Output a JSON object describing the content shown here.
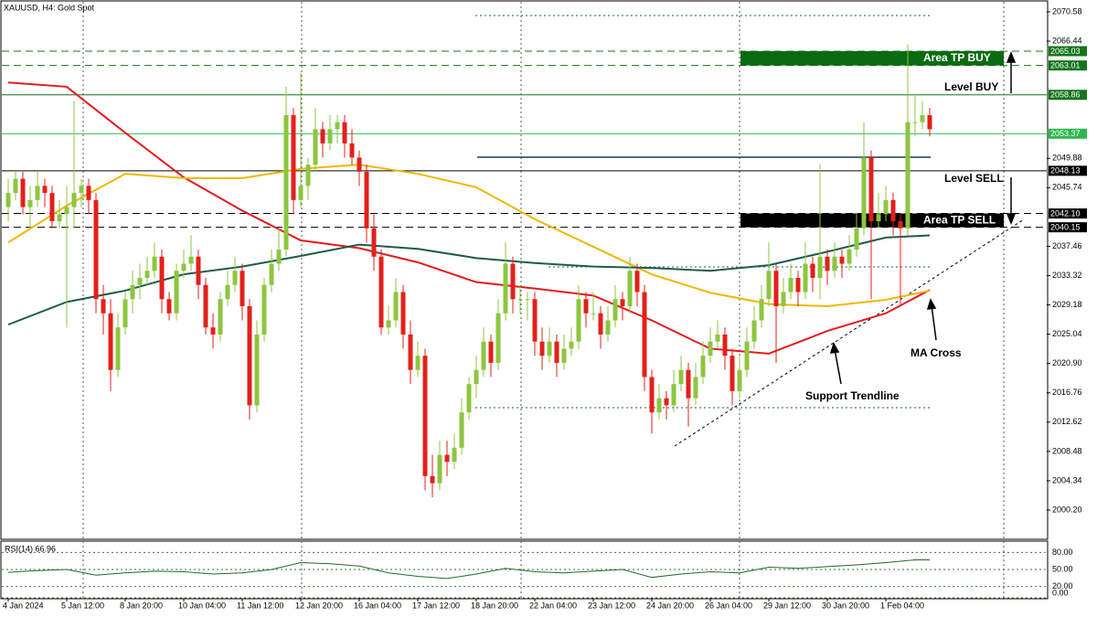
{
  "chart_data": {
    "type": "candlestick",
    "title": "XAUUSD, H4:  Gold Spot",
    "up_color": "#8cc63f",
    "down_color": "#e3201b",
    "categories": [
      "4 Jan 2024",
      null,
      null,
      null,
      null,
      null,
      null,
      null,
      "5 Jan 12:00",
      null,
      null,
      null,
      null,
      null,
      null,
      null,
      "8 Jan 20:00",
      null,
      null,
      null,
      null,
      null,
      null,
      null,
      "10 Jan 04:00",
      null,
      null,
      null,
      null,
      null,
      null,
      null,
      "11 Jan 12:00",
      null,
      null,
      null,
      null,
      null,
      null,
      null,
      "12 Jan 20:00",
      null,
      null,
      null,
      null,
      null,
      null,
      null,
      "16 Jan 04:00",
      null,
      null,
      null,
      null,
      null,
      null,
      null,
      "17 Jan 12:00",
      null,
      null,
      null,
      null,
      null,
      null,
      null,
      "18 Jan 20:00",
      null,
      null,
      null,
      null,
      null,
      null,
      null,
      "22 Jan 04:00",
      null,
      null,
      null,
      null,
      null,
      null,
      null,
      "23 Jan 12:00",
      null,
      null,
      null,
      null,
      null,
      null,
      null,
      "24 Jan 20:00",
      null,
      null,
      null,
      null,
      null,
      null,
      null,
      "26 Jan 04:00",
      null,
      null,
      null,
      null,
      null,
      null,
      null,
      "29 Jan 12:00",
      null,
      null,
      null,
      null,
      null,
      null,
      null,
      "30 Jan 20:00",
      null,
      null,
      null,
      null,
      null,
      null,
      null,
      "1 Feb 04:00",
      null,
      null,
      null,
      null,
      null,
      null
    ],
    "ohlc": [
      [
        2043,
        2047,
        2041,
        2045
      ],
      [
        2045,
        2048,
        2044,
        2047
      ],
      [
        2047,
        2048,
        2042,
        2043
      ],
      [
        2043,
        2046,
        2040,
        2044
      ],
      [
        2044,
        2048,
        2043,
        2046
      ],
      [
        2046,
        2047,
        2043,
        2045
      ],
      [
        2045,
        2046,
        2040,
        2041
      ],
      [
        2041,
        2044,
        2040,
        2042
      ],
      [
        2042,
        2046,
        2026,
        2043
      ],
      [
        2043,
        2058,
        2040,
        2045
      ],
      [
        2045,
        2047,
        2043,
        2046
      ],
      [
        2046,
        2047,
        2042,
        2044
      ],
      [
        2044,
        2045,
        2028,
        2030
      ],
      [
        2030,
        2032,
        2025,
        2028
      ],
      [
        2028,
        2030,
        2017,
        2020
      ],
      [
        2020,
        2028,
        2019,
        2026
      ],
      [
        2026,
        2031,
        2025,
        2030
      ],
      [
        2030,
        2034,
        2028,
        2032
      ],
      [
        2032,
        2035,
        2030,
        2033
      ],
      [
        2033,
        2036,
        2032,
        2034
      ],
      [
        2034,
        2038,
        2033,
        2036
      ],
      [
        2036,
        2037,
        2028,
        2030
      ],
      [
        2030,
        2031,
        2027,
        2028
      ],
      [
        2028,
        2035,
        2027,
        2034
      ],
      [
        2034,
        2037,
        2033,
        2035
      ],
      [
        2035,
        2039,
        2034,
        2036
      ],
      [
        2036,
        2037,
        2030,
        2032
      ],
      [
        2032,
        2033,
        2025,
        2026
      ],
      [
        2026,
        2028,
        2023,
        2025
      ],
      [
        2025,
        2031,
        2024,
        2030
      ],
      [
        2030,
        2034,
        2029,
        2032
      ],
      [
        2032,
        2036,
        2031,
        2034
      ],
      [
        2034,
        2035,
        2027,
        2029
      ],
      [
        2029,
        2030,
        2013,
        2015
      ],
      [
        2015,
        2027,
        2014,
        2025
      ],
      [
        2025,
        2033,
        2024,
        2032
      ],
      [
        2032,
        2037,
        2031,
        2035
      ],
      [
        2035,
        2040,
        2034,
        2037
      ],
      [
        2037,
        2060,
        2036,
        2056
      ],
      [
        2056,
        2057,
        2042,
        2044
      ],
      [
        2044,
        2062,
        2043,
        2046
      ],
      [
        2046,
        2050,
        2044,
        2049
      ],
      [
        2049,
        2057,
        2048,
        2054
      ],
      [
        2054,
        2055,
        2050,
        2052
      ],
      [
        2052,
        2056,
        2051,
        2054
      ],
      [
        2054,
        2056,
        2052,
        2055
      ],
      [
        2055,
        2056,
        2050,
        2052
      ],
      [
        2052,
        2054,
        2049,
        2050
      ],
      [
        2050,
        2051,
        2046,
        2048
      ],
      [
        2048,
        2049,
        2038,
        2040
      ],
      [
        2040,
        2042,
        2034,
        2036
      ],
      [
        2036,
        2037,
        2025,
        2026
      ],
      [
        2026,
        2029,
        2025,
        2027
      ],
      [
        2027,
        2033,
        2026,
        2031
      ],
      [
        2031,
        2032,
        2023,
        2025
      ],
      [
        2025,
        2027,
        2018,
        2020
      ],
      [
        2020,
        2024,
        2019,
        2022
      ],
      [
        2022,
        2023,
        2003,
        2005
      ],
      [
        2005,
        2008,
        2002,
        2004
      ],
      [
        2004,
        2010,
        2003,
        2008
      ],
      [
        2008,
        2010,
        2005,
        2007
      ],
      [
        2007,
        2011,
        2006,
        2009
      ],
      [
        2009,
        2016,
        2008,
        2014
      ],
      [
        2014,
        2019,
        2013,
        2018
      ],
      [
        2018,
        2022,
        2016,
        2020
      ],
      [
        2020,
        2026,
        2019,
        2024
      ],
      [
        2024,
        2025,
        2019,
        2021
      ],
      [
        2021,
        2030,
        2020,
        2028
      ],
      [
        2028,
        2038,
        2027,
        2035
      ],
      [
        2035,
        2036,
        2028,
        2030
      ],
      [
        2030,
        2032,
        2028,
        2030
      ],
      [
        2030,
        2031,
        2027,
        2030
      ],
      [
        2030,
        2031,
        2022,
        2024
      ],
      [
        2024,
        2026,
        2020,
        2022
      ],
      [
        2022,
        2026,
        2021,
        2024
      ],
      [
        2024,
        2025,
        2019,
        2021
      ],
      [
        2021,
        2025,
        2020,
        2023
      ],
      [
        2023,
        2026,
        2022,
        2024
      ],
      [
        2024,
        2032,
        2023,
        2030
      ],
      [
        2030,
        2031,
        2026,
        2028
      ],
      [
        2028,
        2031,
        2027,
        2028
      ],
      [
        2028,
        2029,
        2023,
        2025
      ],
      [
        2025,
        2029,
        2024,
        2027
      ],
      [
        2027,
        2032,
        2026,
        2030
      ],
      [
        2030,
        2031,
        2027,
        2029
      ],
      [
        2029,
        2036,
        2028,
        2034
      ],
      [
        2034,
        2035,
        2029,
        2031
      ],
      [
        2031,
        2032,
        2017,
        2019
      ],
      [
        2019,
        2020,
        2011,
        2014
      ],
      [
        2014,
        2018,
        2013,
        2016
      ],
      [
        2016,
        2017,
        2013,
        2015
      ],
      [
        2015,
        2020,
        2014,
        2018
      ],
      [
        2018,
        2022,
        2017,
        2020
      ],
      [
        2020,
        2021,
        2012,
        2016
      ],
      [
        2016,
        2021,
        2015,
        2019
      ],
      [
        2019,
        2024,
        2018,
        2022
      ],
      [
        2022,
        2026,
        2021,
        2024
      ],
      [
        2024,
        2027,
        2023,
        2025
      ],
      [
        2025,
        2026,
        2020,
        2022
      ],
      [
        2022,
        2023,
        2015,
        2017
      ],
      [
        2017,
        2022,
        2016,
        2020
      ],
      [
        2020,
        2026,
        2019,
        2024
      ],
      [
        2024,
        2029,
        2023,
        2027
      ],
      [
        2027,
        2032,
        2026,
        2030
      ],
      [
        2030,
        2038,
        2029,
        2034
      ],
      [
        2034,
        2035,
        2021,
        2029
      ],
      [
        2029,
        2033,
        2028,
        2031
      ],
      [
        2031,
        2035,
        2030,
        2033
      ],
      [
        2033,
        2034,
        2029,
        2031
      ],
      [
        2031,
        2038,
        2030,
        2035
      ],
      [
        2035,
        2036,
        2031,
        2033
      ],
      [
        2033,
        2049,
        2030,
        2036
      ],
      [
        2036,
        2037,
        2032,
        2034
      ],
      [
        2034,
        2038,
        2033,
        2036
      ],
      [
        2036,
        2037,
        2033,
        2035
      ],
      [
        2035,
        2039,
        2034,
        2037
      ],
      [
        2037,
        2042,
        2036,
        2040
      ],
      [
        2040,
        2055,
        2039,
        2050
      ],
      [
        2050,
        2051,
        2030,
        2041
      ],
      [
        2041,
        2045,
        2040,
        2042
      ],
      [
        2042,
        2046,
        2041,
        2044
      ],
      [
        2044,
        2045,
        2039,
        2041
      ],
      [
        2041,
        2042,
        2029,
        2040
      ],
      [
        2040,
        2066,
        2039,
        2055
      ],
      [
        2055,
        2059,
        2053,
        2055
      ],
      [
        2055,
        2058,
        2054,
        2056
      ],
      [
        2056,
        2057,
        2053,
        2054
      ]
    ],
    "series": [
      {
        "color": "#e31a1c",
        "x": [
          0,
          8,
          16,
          24,
          32,
          40,
          48,
          56,
          64,
          72,
          80,
          88,
          96,
          104,
          112,
          120,
          126
        ],
        "values": [
          2060.6,
          2060.0,
          2053.5,
          2047.2,
          2042.5,
          2038.3,
          2037.2,
          2035.2,
          2032.4,
          2031.5,
          2030.5,
          2027.0,
          2023.0,
          2022.3,
          2025.5,
          2028.0,
          2031.3
        ]
      },
      {
        "color": "#f2b600",
        "x": [
          0,
          8,
          16,
          24,
          32,
          40,
          48,
          56,
          64,
          72,
          80,
          88,
          96,
          104,
          112,
          120,
          126
        ],
        "values": [
          2038.0,
          2043.2,
          2047.7,
          2047.1,
          2047.1,
          2048.4,
          2049.0,
          2047.7,
          2045.8,
          2041.3,
          2037.4,
          2033.5,
          2030.9,
          2029.3,
          2029.0,
          2029.9,
          2031.2
        ]
      },
      {
        "color": "#1d5c4c",
        "x": [
          0,
          8,
          16,
          24,
          32,
          40,
          48,
          56,
          64,
          72,
          80,
          88,
          96,
          104,
          112,
          120,
          126
        ],
        "values": [
          2026.4,
          2029.6,
          2031.2,
          2033.5,
          2034.6,
          2036.1,
          2037.7,
          2037.1,
          2035.8,
          2035.1,
          2034.6,
          2034.4,
          2034.0,
          2034.8,
          2036.7,
          2038.7,
          2039.0
        ]
      }
    ],
    "ylim": [
      1996.07,
      2072.0
    ],
    "yticks": [
      2070.58,
      2066.44,
      2049.88,
      2045.74,
      2037.46,
      2033.32,
      2029.18,
      2025.04,
      {
        "value": 2020.9,
        "label": "2020.90"
      },
      2016.76,
      2012.62,
      2008.48,
      2004.34,
      {
        "value": 2000.2,
        "label": "2000.20"
      }
    ],
    "levels": [
      {
        "value": 2065.03,
        "color": "#15751d",
        "dash": true
      },
      {
        "value": 2063.01,
        "color": "#15751d",
        "dash": true
      },
      {
        "value": 2058.86,
        "color": "#15751d",
        "dash": false
      },
      {
        "value": 2053.37,
        "color": "#2db84b",
        "dash": false
      },
      {
        "value": 2048.13,
        "color": "#000000",
        "dash": false
      },
      {
        "value": 2042.1,
        "label": "2042.10",
        "color": "#000000",
        "dash": true
      },
      {
        "value": 2040.15,
        "color": "#000000",
        "dash": true
      }
    ],
    "annotations": {
      "area_tp_buy": "Area TP BUY",
      "level_buy": "Level BUY",
      "level_sell": "Level SELL",
      "area_tp_sell": "Area TP SELL",
      "ma_cross": "MA Cross",
      "support_trendline": "Support Trendline"
    },
    "rsi": {
      "title": "RSI(14) 66.96",
      "color": "#1f6b2a",
      "ylim": [
        0,
        100
      ],
      "yticks": [
        {
          "value": 80,
          "label": "80.00"
        },
        {
          "value": 50,
          "label": "50.00"
        },
        {
          "value": 20,
          "label": "20.00"
        },
        {
          "value": 0,
          "label": "0.00"
        }
      ],
      "x": [
        0,
        4,
        8,
        12,
        16,
        20,
        24,
        28,
        32,
        36,
        40,
        44,
        48,
        52,
        56,
        60,
        64,
        68,
        72,
        76,
        80,
        84,
        88,
        92,
        96,
        100,
        104,
        108,
        112,
        116,
        120,
        124,
        126
      ],
      "values": [
        45,
        48,
        50,
        40,
        44,
        47,
        46,
        42,
        44,
        50,
        62,
        60,
        56,
        44,
        38,
        34,
        42,
        52,
        46,
        44,
        47,
        50,
        36,
        42,
        46,
        44,
        54,
        52,
        55,
        58,
        62,
        67,
        66.96
      ]
    }
  }
}
